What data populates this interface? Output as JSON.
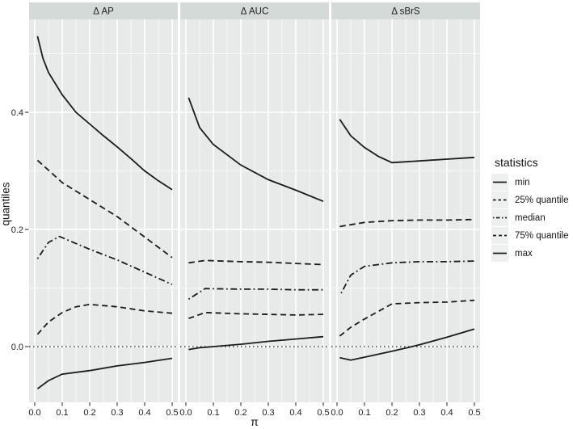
{
  "figure": {
    "background": "#ffffff",
    "panel_bg": "#e7eae8",
    "strip_bg": "#d4dad7",
    "grid_color": "#ffffff",
    "line_color": "#1b1b1b",
    "legend": {
      "title": "statistics",
      "key_bg": "#edf0ee",
      "items": [
        "min",
        "25% quantile",
        "median",
        "75% quantile",
        "max"
      ]
    }
  },
  "chart_data": {
    "type": "line",
    "title": "",
    "xlabel": "π",
    "ylabel": "quantiles",
    "xlim": [
      -0.02,
      0.52
    ],
    "ylim": [
      -0.095,
      0.555
    ],
    "grid": true,
    "legend_position": "right",
    "x_tick_labels": [
      "0.0",
      "0.1",
      "0.2",
      "0.3",
      "0.4",
      "0.5"
    ],
    "y_tick_labels": [
      "0.0",
      "0.2",
      "0.4"
    ],
    "y_minor": [
      0.1,
      0.3,
      0.5
    ],
    "reference_line": {
      "y": 0.0,
      "linetype": "dotted"
    },
    "linetypes": {
      "min": "solid",
      "25% quantile": "dashed",
      "median": "dotdash",
      "75% quantile": "dashed2",
      "max": "solid"
    },
    "facets": [
      {
        "label": "Δ AP",
        "series": [
          {
            "name": "max",
            "points": [
              [
                0.01,
                0.53
              ],
              [
                0.03,
                0.492
              ],
              [
                0.05,
                0.468
              ],
              [
                0.1,
                0.43
              ],
              [
                0.15,
                0.4
              ],
              [
                0.2,
                0.38
              ],
              [
                0.25,
                0.36
              ],
              [
                0.3,
                0.341
              ],
              [
                0.35,
                0.321
              ],
              [
                0.4,
                0.3
              ],
              [
                0.45,
                0.283
              ],
              [
                0.5,
                0.268
              ]
            ]
          },
          {
            "name": "75% quantile",
            "points": [
              [
                0.01,
                0.318
              ],
              [
                0.1,
                0.28
              ],
              [
                0.2,
                0.251
              ],
              [
                0.3,
                0.222
              ],
              [
                0.4,
                0.187
              ],
              [
                0.5,
                0.152
              ]
            ]
          },
          {
            "name": "median",
            "points": [
              [
                0.01,
                0.15
              ],
              [
                0.05,
                0.178
              ],
              [
                0.09,
                0.188
              ],
              [
                0.15,
                0.176
              ],
              [
                0.2,
                0.166
              ],
              [
                0.3,
                0.148
              ],
              [
                0.4,
                0.127
              ],
              [
                0.5,
                0.106
              ]
            ]
          },
          {
            "name": "25% quantile",
            "points": [
              [
                0.01,
                0.021
              ],
              [
                0.05,
                0.042
              ],
              [
                0.1,
                0.058
              ],
              [
                0.15,
                0.068
              ],
              [
                0.2,
                0.072
              ],
              [
                0.3,
                0.068
              ],
              [
                0.4,
                0.061
              ],
              [
                0.5,
                0.057
              ]
            ]
          },
          {
            "name": "min",
            "points": [
              [
                0.01,
                -0.072
              ],
              [
                0.05,
                -0.058
              ],
              [
                0.1,
                -0.047
              ],
              [
                0.2,
                -0.041
              ],
              [
                0.3,
                -0.033
              ],
              [
                0.4,
                -0.027
              ],
              [
                0.5,
                -0.02
              ]
            ]
          }
        ]
      },
      {
        "label": "Δ AUC",
        "series": [
          {
            "name": "max",
            "points": [
              [
                0.01,
                0.425
              ],
              [
                0.05,
                0.374
              ],
              [
                0.1,
                0.345
              ],
              [
                0.2,
                0.31
              ],
              [
                0.3,
                0.285
              ],
              [
                0.4,
                0.267
              ],
              [
                0.5,
                0.248
              ]
            ]
          },
          {
            "name": "75% quantile",
            "points": [
              [
                0.01,
                0.143
              ],
              [
                0.07,
                0.147
              ],
              [
                0.2,
                0.145
              ],
              [
                0.3,
                0.144
              ],
              [
                0.4,
                0.142
              ],
              [
                0.5,
                0.14
              ]
            ]
          },
          {
            "name": "median",
            "points": [
              [
                0.01,
                0.081
              ],
              [
                0.07,
                0.099
              ],
              [
                0.2,
                0.098
              ],
              [
                0.3,
                0.098
              ],
              [
                0.4,
                0.097
              ],
              [
                0.5,
                0.097
              ]
            ]
          },
          {
            "name": "25% quantile",
            "points": [
              [
                0.01,
                0.048
              ],
              [
                0.07,
                0.058
              ],
              [
                0.2,
                0.056
              ],
              [
                0.3,
                0.055
              ],
              [
                0.4,
                0.054
              ],
              [
                0.5,
                0.055
              ]
            ]
          },
          {
            "name": "min",
            "points": [
              [
                0.01,
                -0.005
              ],
              [
                0.05,
                -0.002
              ],
              [
                0.1,
                0.0
              ],
              [
                0.2,
                0.004
              ],
              [
                0.3,
                0.009
              ],
              [
                0.4,
                0.013
              ],
              [
                0.5,
                0.017
              ]
            ]
          }
        ]
      },
      {
        "label": "Δ sBrS",
        "series": [
          {
            "name": "max",
            "points": [
              [
                0.01,
                0.388
              ],
              [
                0.05,
                0.36
              ],
              [
                0.1,
                0.34
              ],
              [
                0.15,
                0.325
              ],
              [
                0.2,
                0.314
              ],
              [
                0.3,
                0.317
              ],
              [
                0.4,
                0.32
              ],
              [
                0.5,
                0.323
              ]
            ]
          },
          {
            "name": "75% quantile",
            "points": [
              [
                0.01,
                0.205
              ],
              [
                0.1,
                0.212
              ],
              [
                0.2,
                0.215
              ],
              [
                0.3,
                0.216
              ],
              [
                0.4,
                0.216
              ],
              [
                0.5,
                0.217
              ]
            ]
          },
          {
            "name": "median",
            "points": [
              [
                0.015,
                0.091
              ],
              [
                0.05,
                0.122
              ],
              [
                0.1,
                0.137
              ],
              [
                0.2,
                0.143
              ],
              [
                0.3,
                0.145
              ],
              [
                0.4,
                0.145
              ],
              [
                0.5,
                0.146
              ]
            ]
          },
          {
            "name": "25% quantile",
            "points": [
              [
                0.01,
                0.018
              ],
              [
                0.05,
                0.033
              ],
              [
                0.1,
                0.047
              ],
              [
                0.15,
                0.06
              ],
              [
                0.2,
                0.073
              ],
              [
                0.3,
                0.075
              ],
              [
                0.4,
                0.076
              ],
              [
                0.5,
                0.079
              ]
            ]
          },
          {
            "name": "min",
            "points": [
              [
                0.01,
                -0.019
              ],
              [
                0.05,
                -0.023
              ],
              [
                0.1,
                -0.018
              ],
              [
                0.2,
                -0.008
              ],
              [
                0.3,
                0.003
              ],
              [
                0.4,
                0.016
              ],
              [
                0.5,
                0.03
              ]
            ]
          }
        ]
      }
    ]
  }
}
